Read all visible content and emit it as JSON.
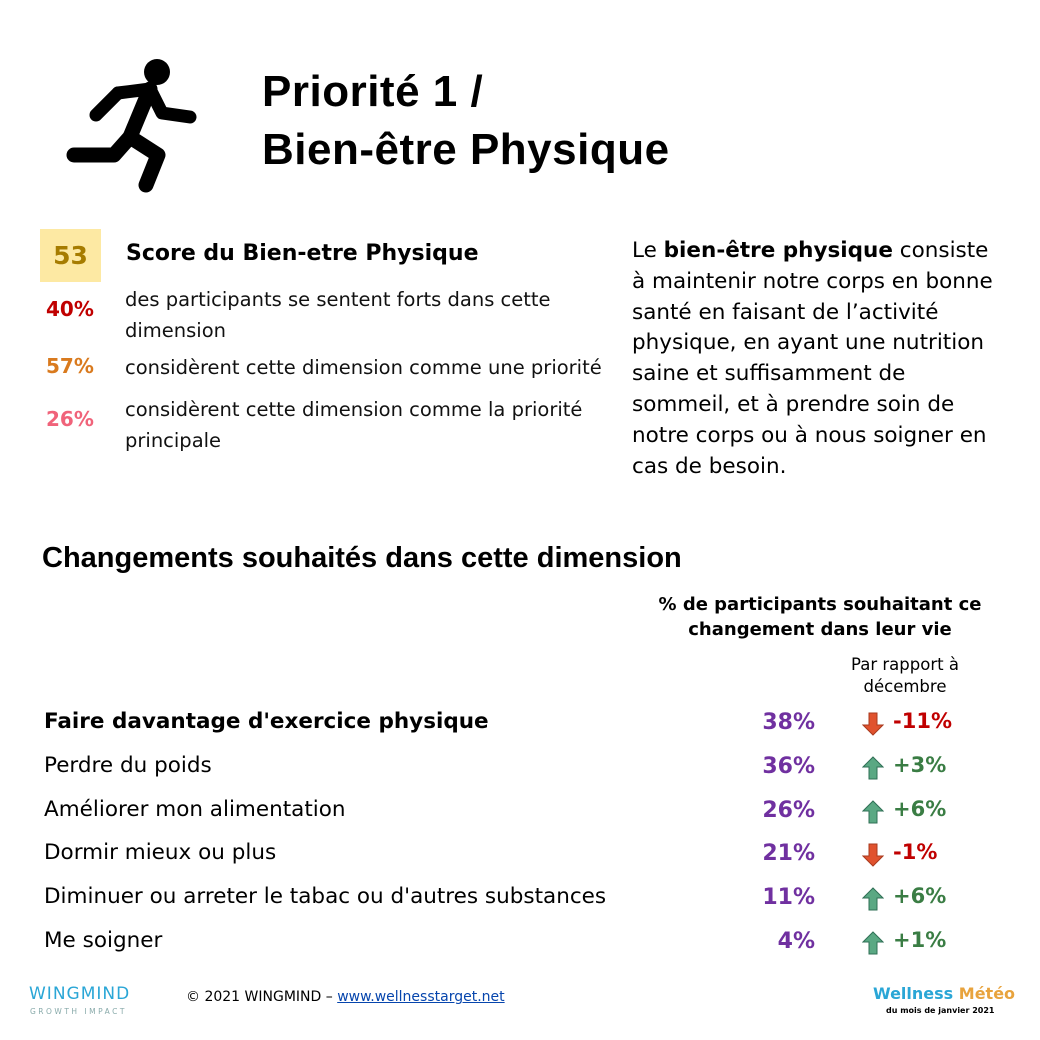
{
  "header": {
    "title_line1": "Priorité 1 /",
    "title_line2": "Bien-être Physique"
  },
  "score": {
    "value": "53",
    "label": "Score du Bien-etre Physique"
  },
  "stats": [
    {
      "value": "40%",
      "color": "#c00000",
      "text": "des participants se sentent forts dans cette dimension"
    },
    {
      "value": "57%",
      "color": "#d97a1e",
      "text": "considèrent cette dimension comme une priorité"
    },
    {
      "value": "26%",
      "color": "#f0637a",
      "text": "considèrent cette dimension comme la priorité principale"
    }
  ],
  "description": {
    "intro": "Le ",
    "bold": "bien-être physique",
    "rest": " consiste à maintenir notre corps en bonne santé en faisant de l’activité physique, en ayant une nutrition saine et suffisamment de sommeil, et à prendre soin de notre corps ou à nous soigner en cas de besoin."
  },
  "changes": {
    "title": "Changements souhaités dans cette dimension",
    "column_header": "% de participants souhaitant ce changement dans leur vie",
    "delta_header": "Par rapport à décembre",
    "rows": [
      {
        "label": "Faire davantage d'exercice physique",
        "percent": "38%",
        "delta": "-11%",
        "direction": "down",
        "emphasis": true
      },
      {
        "label": "Perdre du poids",
        "percent": "36%",
        "delta": "+3%",
        "direction": "up",
        "emphasis": false
      },
      {
        "label": "Améliorer mon alimentation",
        "percent": "26%",
        "delta": "+6%",
        "direction": "up",
        "emphasis": false
      },
      {
        "label": "Dormir mieux ou plus",
        "percent": "21%",
        "delta": "-1%",
        "direction": "down",
        "emphasis": false
      },
      {
        "label": "Diminuer ou arreter le tabac ou d'autres substances",
        "percent": "11%",
        "delta": "+6%",
        "direction": "up",
        "emphasis": false
      },
      {
        "label": "Me soigner",
        "percent": "4%",
        "delta": "+1%",
        "direction": "up",
        "emphasis": false
      }
    ]
  },
  "footer": {
    "logo": "WINGMIND",
    "logo_tagline": "GROWTH IMPACT",
    "copyright": "© 2021 WINGMIND –",
    "link": "www.wellnesstarget.net",
    "brand_1": "Wellness",
    "brand_2": "Météo",
    "brand_sub": "du mois de janvier 2021"
  }
}
